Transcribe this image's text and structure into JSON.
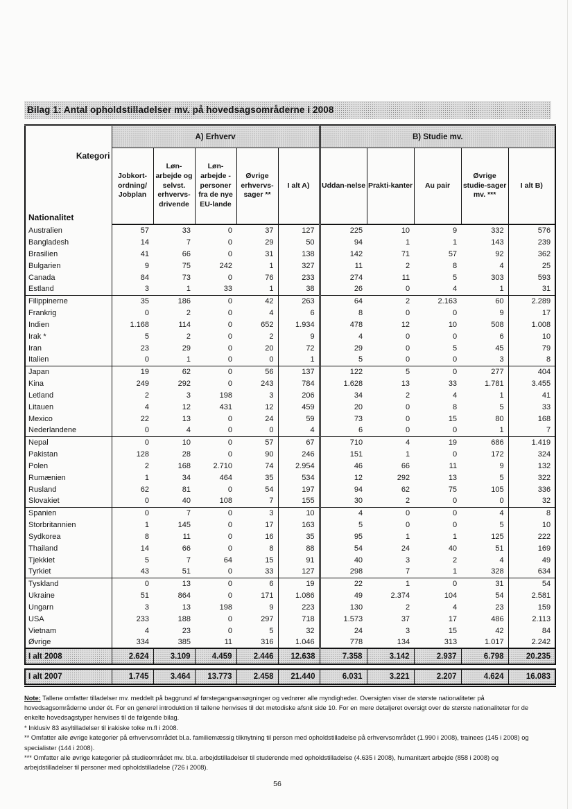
{
  "title": "Bilag 1: Antal opholdstilladelser mv. på hovedsagsområderne i 2008",
  "page_number": "56",
  "table": {
    "corner": {
      "kategori": "Kategori",
      "nationalitet": "Nationalitet"
    },
    "group_a": "A) Erhverv",
    "group_b": "B) Studie mv.",
    "columns": [
      "Jobkort-ordning/ Jobplan",
      "Løn-arbejde og selvst. erhvervs-drivende",
      "Løn-arbejde - personer fra de nye EU-lande",
      "Øvrige erhvervs-sager **",
      "I alt A)",
      "Uddan-nelse",
      "Prakti-kanter",
      "Au pair",
      "Øvrige studie-sager mv. ***",
      "I alt B)"
    ],
    "rows": [
      [
        "Australien",
        "57",
        "33",
        "0",
        "37",
        "127",
        "225",
        "10",
        "9",
        "332",
        "576"
      ],
      [
        "Bangladesh",
        "14",
        "7",
        "0",
        "29",
        "50",
        "94",
        "1",
        "1",
        "143",
        "239"
      ],
      [
        "Brasilien",
        "41",
        "66",
        "0",
        "31",
        "138",
        "142",
        "71",
        "57",
        "92",
        "362"
      ],
      [
        "Bulgarien",
        "9",
        "75",
        "242",
        "1",
        "327",
        "11",
        "2",
        "8",
        "4",
        "25"
      ],
      [
        "Canada",
        "84",
        "73",
        "0",
        "76",
        "233",
        "274",
        "11",
        "5",
        "303",
        "593"
      ],
      [
        "Estland",
        "3",
        "1",
        "33",
        "1",
        "38",
        "26",
        "0",
        "4",
        "1",
        "31"
      ],
      [
        "Filippinerne",
        "35",
        "186",
        "0",
        "42",
        "263",
        "64",
        "2",
        "2.163",
        "60",
        "2.289"
      ],
      [
        "Frankrig",
        "0",
        "2",
        "0",
        "4",
        "6",
        "8",
        "0",
        "0",
        "9",
        "17"
      ],
      [
        "Indien",
        "1.168",
        "114",
        "0",
        "652",
        "1.934",
        "478",
        "12",
        "10",
        "508",
        "1.008"
      ],
      [
        "Irak *",
        "5",
        "2",
        "0",
        "2",
        "9",
        "4",
        "0",
        "0",
        "6",
        "10"
      ],
      [
        "Iran",
        "23",
        "29",
        "0",
        "20",
        "72",
        "29",
        "0",
        "5",
        "45",
        "79"
      ],
      [
        "Italien",
        "0",
        "1",
        "0",
        "0",
        "1",
        "5",
        "0",
        "0",
        "3",
        "8"
      ],
      [
        "Japan",
        "19",
        "62",
        "0",
        "56",
        "137",
        "122",
        "5",
        "0",
        "277",
        "404"
      ],
      [
        "Kina",
        "249",
        "292",
        "0",
        "243",
        "784",
        "1.628",
        "13",
        "33",
        "1.781",
        "3.455"
      ],
      [
        "Letland",
        "2",
        "3",
        "198",
        "3",
        "206",
        "34",
        "2",
        "4",
        "1",
        "41"
      ],
      [
        "Litauen",
        "4",
        "12",
        "431",
        "12",
        "459",
        "20",
        "0",
        "8",
        "5",
        "33"
      ],
      [
        "Mexico",
        "22",
        "13",
        "0",
        "24",
        "59",
        "73",
        "0",
        "15",
        "80",
        "168"
      ],
      [
        "Nederlandene",
        "0",
        "4",
        "0",
        "0",
        "4",
        "6",
        "0",
        "0",
        "1",
        "7"
      ],
      [
        "Nepal",
        "0",
        "10",
        "0",
        "57",
        "67",
        "710",
        "4",
        "19",
        "686",
        "1.419"
      ],
      [
        "Pakistan",
        "128",
        "28",
        "0",
        "90",
        "246",
        "151",
        "1",
        "0",
        "172",
        "324"
      ],
      [
        "Polen",
        "2",
        "168",
        "2.710",
        "74",
        "2.954",
        "46",
        "66",
        "11",
        "9",
        "132"
      ],
      [
        "Rumænien",
        "1",
        "34",
        "464",
        "35",
        "534",
        "12",
        "292",
        "13",
        "5",
        "322"
      ],
      [
        "Rusland",
        "62",
        "81",
        "0",
        "54",
        "197",
        "94",
        "62",
        "75",
        "105",
        "336"
      ],
      [
        "Slovakiet",
        "0",
        "40",
        "108",
        "7",
        "155",
        "30",
        "2",
        "0",
        "0",
        "32"
      ],
      [
        "Spanien",
        "0",
        "7",
        "0",
        "3",
        "10",
        "4",
        "0",
        "0",
        "4",
        "8"
      ],
      [
        "Storbritannien",
        "1",
        "145",
        "0",
        "17",
        "163",
        "5",
        "0",
        "0",
        "5",
        "10"
      ],
      [
        "Sydkorea",
        "8",
        "11",
        "0",
        "16",
        "35",
        "95",
        "1",
        "1",
        "125",
        "222"
      ],
      [
        "Thailand",
        "14",
        "66",
        "0",
        "8",
        "88",
        "54",
        "24",
        "40",
        "51",
        "169"
      ],
      [
        "Tjekkiet",
        "5",
        "7",
        "64",
        "15",
        "91",
        "40",
        "3",
        "2",
        "4",
        "49"
      ],
      [
        "Tyrkiet",
        "43",
        "51",
        "0",
        "33",
        "127",
        "298",
        "7",
        "1",
        "328",
        "634"
      ],
      [
        "Tyskland",
        "0",
        "13",
        "0",
        "6",
        "19",
        "22",
        "1",
        "0",
        "31",
        "54"
      ],
      [
        "Ukraine",
        "51",
        "864",
        "0",
        "171",
        "1.086",
        "49",
        "2.374",
        "104",
        "54",
        "2.581"
      ],
      [
        "Ungarn",
        "3",
        "13",
        "198",
        "9",
        "223",
        "130",
        "2",
        "4",
        "23",
        "159"
      ],
      [
        "USA",
        "233",
        "188",
        "0",
        "297",
        "718",
        "1.573",
        "37",
        "17",
        "486",
        "2.113"
      ],
      [
        "Vietnam",
        "4",
        "23",
        "0",
        "5",
        "32",
        "24",
        "3",
        "15",
        "42",
        "84"
      ],
      [
        "Øvrige",
        "334",
        "385",
        "11",
        "316",
        "1.046",
        "778",
        "134",
        "313",
        "1.017",
        "2.242"
      ]
    ],
    "total_2008": [
      "I alt 2008",
      "2.624",
      "3.109",
      "4.459",
      "2.446",
      "12.638",
      "7.358",
      "3.142",
      "2.937",
      "6.798",
      "20.235"
    ],
    "total_2007": [
      "I alt 2007",
      "1.745",
      "3.464",
      "13.773",
      "2.458",
      "21.440",
      "6.031",
      "3.221",
      "2.207",
      "4.624",
      "16.083"
    ]
  },
  "notes": {
    "label": "Note:",
    "body": " Tallene omfatter tilladelser mv. meddelt på baggrund af førstegangsansøgninger og vedrører alle myndigheder. Oversigten viser de største nationaliteter på hovedsagsområderne under ét. For en generel introduktion til tallene henvises til det metodiske afsnit side 10. For en mere detaljeret oversigt over de største nationaliteter for de enkelte hovedsagstyper henvises til de følgende bilag.",
    "footnotes": [
      "* Inklusiv 83 asyltilladelser til irakiske tolke m.fl i 2008.",
      "** Omfatter alle øvrige kategorier på erhvervsområdet bl.a. familiemæssig tilknytning til person med opholdstilladelse på erhvervsområdet (1.990 i 2008), trainees (145 i 2008) og specialister (144 i 2008).",
      "*** Omfatter alle øvrige kategorier på studieområdet mv. bl.a. arbejdstilladelser til studerende med opholdstilladelse (4.635 i 2008), humanitært arbejde (858 i 2008) og arbejdstilladelser til personer med opholdstilladelse (726 i 2008)."
    ]
  }
}
